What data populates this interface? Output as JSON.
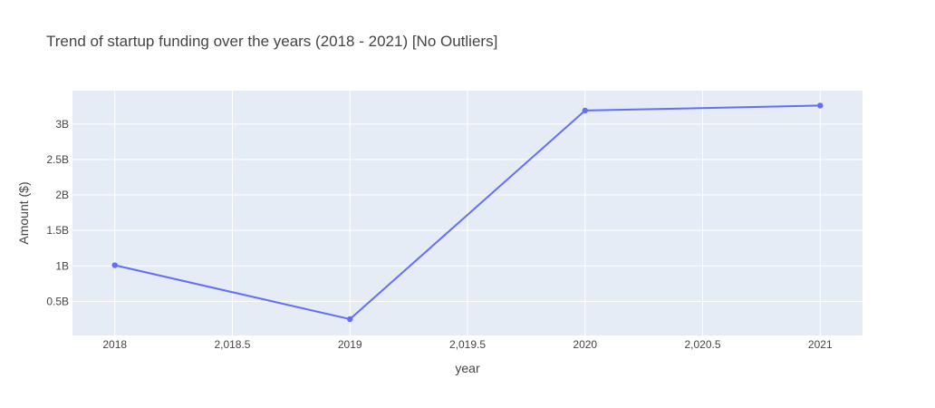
{
  "chart_data": {
    "type": "line",
    "title": "Trend of startup funding over the years (2018 - 2021) [No Outliers]",
    "xlabel": "year",
    "ylabel": "Amount ($)",
    "x": [
      2018,
      2019,
      2020,
      2021
    ],
    "series": [
      {
        "values": [
          1010000000,
          250000000,
          3190000000,
          3260000000
        ],
        "color": "#636efa"
      }
    ],
    "xlim": [
      2017.82,
      2021.18
    ],
    "ylim": [
      20000000,
      3470000000
    ],
    "x_ticks": [
      {
        "value": 2018,
        "label": "2018"
      },
      {
        "value": 2018.5,
        "label": "2,018.5"
      },
      {
        "value": 2019,
        "label": "2019"
      },
      {
        "value": 2019.5,
        "label": "2,019.5"
      },
      {
        "value": 2020,
        "label": "2020"
      },
      {
        "value": 2020.5,
        "label": "2,020.5"
      },
      {
        "value": 2021,
        "label": "2021"
      }
    ],
    "y_ticks": [
      {
        "value": 500000000,
        "label": "0.5B"
      },
      {
        "value": 1000000000,
        "label": "1B"
      },
      {
        "value": 1500000000,
        "label": "1.5B"
      },
      {
        "value": 2000000000,
        "label": "2B"
      },
      {
        "value": 2500000000,
        "label": "2.5B"
      },
      {
        "value": 3000000000,
        "label": "3B"
      }
    ],
    "grid": true,
    "colors": {
      "plot_background": "#e5ecf6",
      "grid": "#ffffff",
      "text": "#444444"
    }
  }
}
